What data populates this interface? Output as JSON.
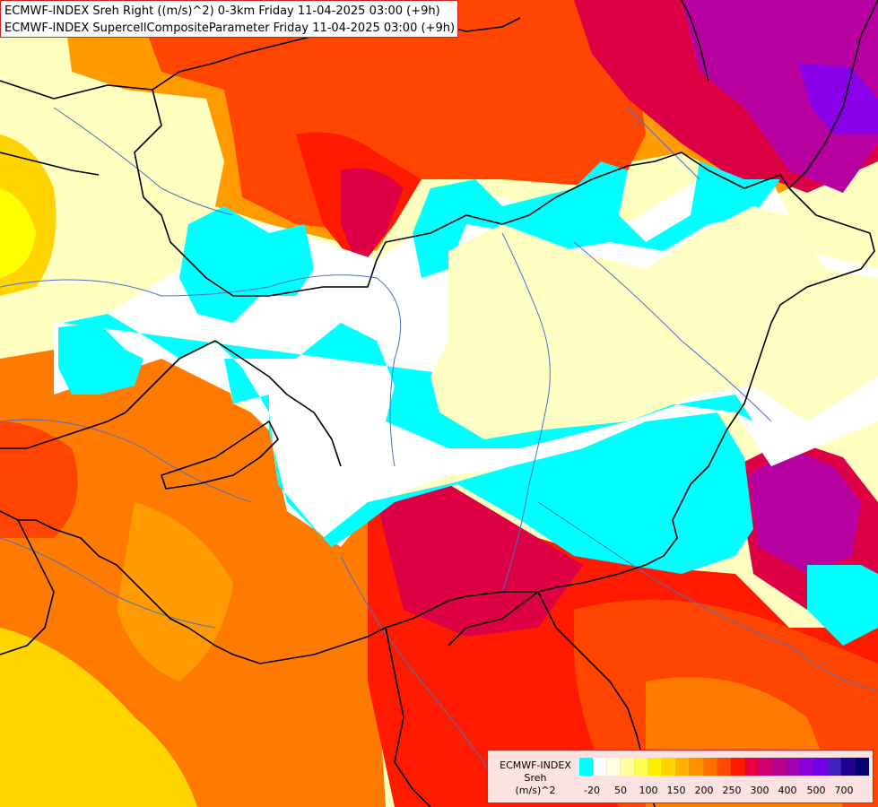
{
  "title": {
    "line1": "ECMWF-INDEX Sreh Right ((m/s)^2) 0-3km Friday 11-04-2025 03:00 (+9h)",
    "line2": "ECMWF-INDEX SupercellCompositeParameter Friday 11-04-2025 03:00 (+9h)"
  },
  "legend": {
    "title_lines": [
      "ECMWF-INDEX",
      "Sreh",
      "(m/s)^2"
    ],
    "colors": [
      "#00ffff",
      "#ffffff",
      "#ffffe0",
      "#ffffa0",
      "#ffff50",
      "#ffee00",
      "#ffd200",
      "#ffb000",
      "#ff9000",
      "#ff7000",
      "#ff4a00",
      "#ff1a00",
      "#e8003c",
      "#d00070",
      "#b80090",
      "#a000b0",
      "#8a00d8",
      "#7000e8",
      "#4020c0",
      "#200090",
      "#000070"
    ],
    "tick_labels": [
      "-20",
      "50",
      "100",
      "150",
      "200",
      "250",
      "300",
      "400",
      "500",
      "700"
    ]
  },
  "map_colors": {
    "background": "#ffffc0",
    "orange": "#ff9a00",
    "dark_orange": "#ff7a00",
    "red_orange": "#ff4500",
    "red": "#ff1a00",
    "crimson": "#dd0044",
    "magenta": "#b800a0",
    "purple": "#a000d0",
    "violet": "#8a00e8",
    "cyan": "#00ffff",
    "white": "#ffffff",
    "light_yellow": "#ffffc4",
    "yellow": "#ffff00",
    "gold": "#ffd400",
    "border": "#000000",
    "river": "#4a70c8"
  }
}
